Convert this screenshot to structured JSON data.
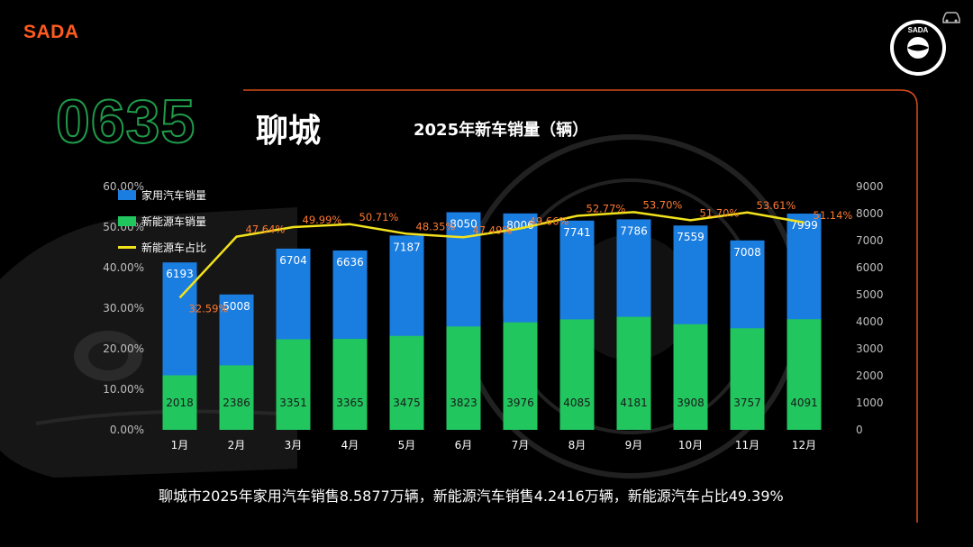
{
  "brand": "SADA",
  "area_code": "0635",
  "city": "聊城",
  "summary": "聊城市2025年家用汽车销售8.5877万辆，新能源汽车销售4.2416万辆，新能源汽车占比49.39%",
  "colors": {
    "accent": "#ff5a1f",
    "total_bar": "#1a7de0",
    "nev_bar": "#22c65e",
    "share_line": "#f2e21b",
    "share_label": "#ff7a30",
    "outline_green": "#1f9b4a"
  },
  "icons": [
    "car-icon",
    "sada-seal-icon"
  ],
  "chart_data": {
    "type": "bar",
    "title": "2025年新车销量（辆）",
    "categories": [
      "1月",
      "2月",
      "3月",
      "4月",
      "5月",
      "6月",
      "7月",
      "8月",
      "9月",
      "10月",
      "11月",
      "12月"
    ],
    "series": [
      {
        "name": "家用汽车销量",
        "type": "bar",
        "values": [
          6193,
          5008,
          6704,
          6636,
          7187,
          8050,
          8006,
          7741,
          7786,
          7559,
          7008,
          7999
        ]
      },
      {
        "name": "新能源车销量",
        "type": "bar",
        "values": [
          2018,
          2386,
          3351,
          3365,
          3475,
          3823,
          3976,
          4085,
          4181,
          3908,
          3757,
          4091
        ]
      },
      {
        "name": "新能源车占比",
        "type": "line",
        "axis": "left",
        "values": [
          32.59,
          47.64,
          49.99,
          50.71,
          48.35,
          47.49,
          49.66,
          52.77,
          53.7,
          51.7,
          53.61,
          51.14
        ],
        "labels": [
          "32.59%",
          "47.64%",
          "49.99%",
          "50.71%",
          "48.35%",
          "47.49%",
          "49.66%",
          "52.77%",
          "53.70%",
          "51.70%",
          "53.61%",
          "51.14%"
        ]
      }
    ],
    "left_axis": {
      "min": 0,
      "max": 60,
      "step": 10,
      "ticks": [
        "0.00%",
        "10.00%",
        "20.00%",
        "30.00%",
        "40.00%",
        "50.00%",
        "60.00%"
      ]
    },
    "right_axis": {
      "min": 0,
      "max": 9000,
      "step": 1000,
      "ticks": [
        "0",
        "1000",
        "2000",
        "3000",
        "4000",
        "5000",
        "6000",
        "7000",
        "8000",
        "9000"
      ]
    },
    "legend_position": "top-left",
    "grid": false
  }
}
